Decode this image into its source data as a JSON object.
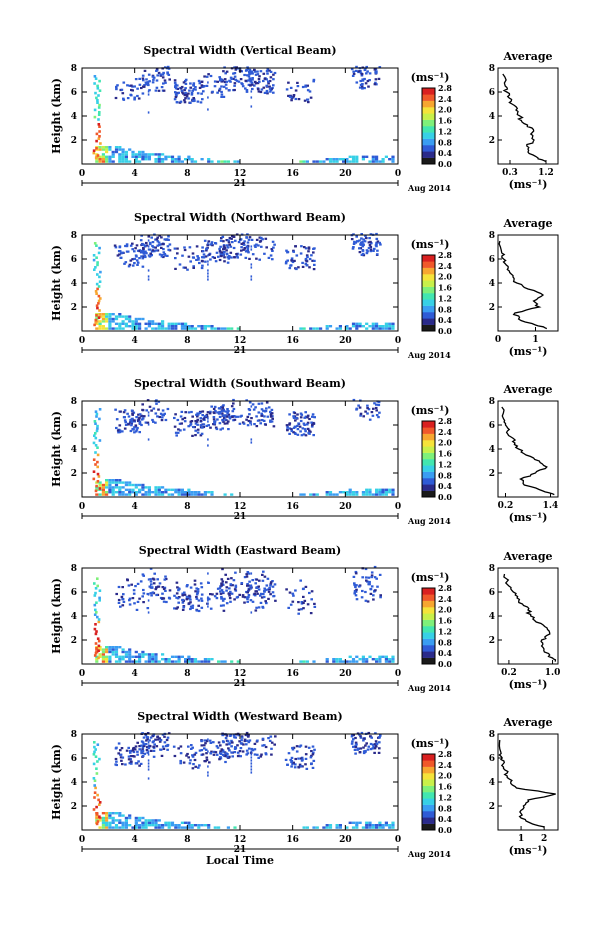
{
  "figure": {
    "x_ticks": [
      "0",
      "4",
      "8",
      "12",
      "16",
      "20",
      "0"
    ],
    "day_label": "21",
    "date_label": "Aug 2014",
    "bottom_xlabel": "Local Time",
    "ylabel": "Height (km)",
    "y_ticks": [
      "2",
      "4",
      "6",
      "8"
    ],
    "colorbar_unit": "(ms⁻¹)",
    "colorbar_ticks": [
      "0.0",
      "0.4",
      "0.8",
      "1.2",
      "1.6",
      "2.0",
      "2.4",
      "2.8"
    ],
    "average_title": "Average",
    "average_xunit": "(ms⁻¹)",
    "colormap": [
      "#1a1a1a",
      "#2a2a8a",
      "#2f5bd6",
      "#3a9df2",
      "#37d0e6",
      "#42e6b0",
      "#7ef07a",
      "#c8f04a",
      "#f5e33a",
      "#f7a630",
      "#f0582a",
      "#d92020"
    ]
  },
  "chart_data": [
    {
      "type": "heatmap",
      "title": "Spectral Width (Vertical Beam)",
      "xlabel": "",
      "ylabel": "Height (km)",
      "xlim": [
        0,
        24
      ],
      "ylim": [
        0,
        8
      ],
      "colorbar_range": [
        0.0,
        2.8
      ],
      "average": {
        "type": "line",
        "title": "Average",
        "xlabel": "(ms⁻¹)",
        "xticks": [
          "0.3",
          "1.2"
        ],
        "xlim": [
          0.0,
          1.5
        ],
        "ylim": [
          0,
          8
        ],
        "x": [
          1.2,
          1.0,
          0.75,
          0.72,
          0.9,
          0.82,
          0.85,
          0.6,
          0.55,
          0.45,
          0.35,
          0.28,
          0.22,
          0.18,
          0.12
        ],
        "y": [
          0.2,
          0.5,
          1.0,
          1.5,
          2.0,
          2.5,
          3.0,
          3.5,
          4.0,
          4.5,
          5.0,
          5.5,
          6.0,
          6.5,
          7.5
        ]
      }
    },
    {
      "type": "heatmap",
      "title": "Spectral Width (Northward Beam)",
      "xlabel": "",
      "ylabel": "Height (km)",
      "xlim": [
        0,
        24
      ],
      "ylim": [
        0,
        8
      ],
      "colorbar_range": [
        0.0,
        2.8
      ],
      "average": {
        "type": "line",
        "title": "Average",
        "xlabel": "(ms⁻¹)",
        "xticks": [
          "0",
          "1"
        ],
        "xlim": [
          0.0,
          1.6
        ],
        "ylim": [
          0,
          8
        ],
        "x": [
          1.3,
          1.0,
          0.55,
          0.45,
          1.1,
          0.95,
          1.2,
          0.8,
          0.5,
          0.4,
          0.3,
          0.22,
          0.15,
          0.1,
          0.05
        ],
        "y": [
          0.2,
          0.5,
          1.0,
          1.5,
          2.0,
          2.5,
          3.0,
          3.5,
          4.0,
          4.5,
          5.0,
          5.5,
          6.0,
          6.5,
          7.5
        ]
      }
    },
    {
      "type": "heatmap",
      "title": "Spectral Width (Southward Beam)",
      "xlabel": "",
      "ylabel": "Height (km)",
      "xlim": [
        0,
        24
      ],
      "ylim": [
        0,
        8
      ],
      "colorbar_range": [
        0.0,
        2.8
      ],
      "average": {
        "type": "line",
        "title": "Average",
        "xlabel": "(ms⁻¹)",
        "xticks": [
          "0.2",
          "1.4"
        ],
        "xlim": [
          0.0,
          1.6
        ],
        "ylim": [
          0,
          8
        ],
        "x": [
          1.5,
          1.2,
          0.7,
          0.6,
          1.0,
          1.3,
          1.1,
          0.75,
          0.55,
          0.45,
          0.35,
          0.25,
          0.2,
          0.15,
          0.1
        ],
        "y": [
          0.2,
          0.5,
          1.0,
          1.5,
          2.0,
          2.5,
          3.0,
          3.5,
          4.0,
          4.5,
          5.0,
          5.5,
          6.0,
          6.5,
          7.5
        ]
      }
    },
    {
      "type": "heatmap",
      "title": "Spectral Width (Eastward Beam)",
      "xlabel": "",
      "ylabel": "Height (km)",
      "xlim": [
        0,
        24
      ],
      "ylim": [
        0,
        8
      ],
      "colorbar_range": [
        0.0,
        2.8
      ],
      "average": {
        "type": "line",
        "title": "Average",
        "xlabel": "(ms⁻¹)",
        "xticks": [
          "0.2",
          "1.0"
        ],
        "xlim": [
          0.0,
          1.1
        ],
        "ylim": [
          0,
          8
        ],
        "x": [
          1.05,
          1.0,
          0.85,
          0.8,
          0.8,
          0.95,
          0.9,
          0.7,
          0.6,
          0.55,
          0.45,
          0.35,
          0.28,
          0.2,
          0.12
        ],
        "y": [
          0.2,
          0.5,
          1.0,
          1.5,
          2.0,
          2.5,
          3.0,
          3.5,
          4.0,
          4.5,
          5.0,
          5.5,
          6.0,
          6.5,
          7.5
        ]
      }
    },
    {
      "type": "heatmap",
      "title": "Spectral Width (Westward Beam)",
      "xlabel": "Local Time",
      "ylabel": "Height (km)",
      "xlim": [
        0,
        24
      ],
      "ylim": [
        0,
        8
      ],
      "colorbar_range": [
        0.0,
        2.8
      ],
      "average": {
        "type": "line",
        "title": "Average",
        "xlabel": "(ms⁻¹)",
        "xticks": [
          "1",
          "2"
        ],
        "xlim": [
          0.0,
          2.6
        ],
        "ylim": [
          0,
          8
        ],
        "x": [
          2.0,
          1.5,
          1.0,
          0.95,
          1.1,
          1.3,
          2.5,
          0.8,
          0.55,
          0.4,
          0.3,
          0.22,
          0.18,
          0.12,
          0.08
        ],
        "y": [
          0.2,
          0.5,
          1.0,
          1.5,
          2.0,
          2.5,
          3.0,
          3.5,
          4.0,
          4.5,
          5.0,
          5.5,
          6.0,
          6.5,
          7.5
        ]
      }
    }
  ]
}
